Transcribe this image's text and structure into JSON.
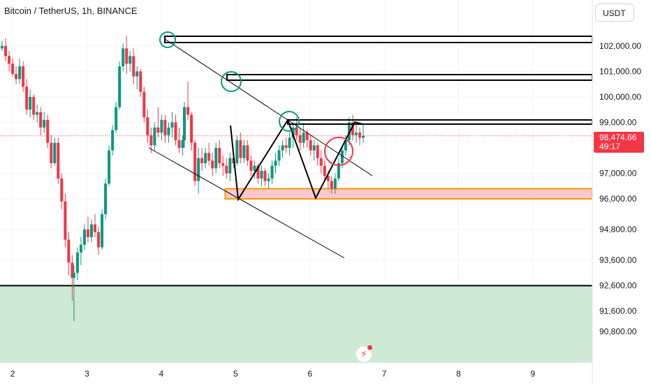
{
  "header": {
    "title": "Bitcoin / TetherUS, 1h, BINANCE"
  },
  "currency_button": {
    "label": "USDT"
  },
  "price_badge": {
    "price": "98,474.66",
    "countdown": "49:17"
  },
  "colors": {
    "up": "#089981",
    "down": "#f23645",
    "grid": "#f0f3fa",
    "zone_fill": "#f8c8cc",
    "zone_border": "#ff9800",
    "support_fill": "#cfead4",
    "circle_green": "#089981",
    "circle_red": "#f23645"
  },
  "icons": {
    "flash": "lightning-icon"
  },
  "chart_data": {
    "type": "candlestick",
    "title": "Bitcoin / TetherUS, 1h, BINANCE",
    "x_tick_labels": [
      "2",
      "3",
      "4",
      "5",
      "6",
      "7",
      "8",
      "9"
    ],
    "x_ticks": [
      2,
      3,
      4,
      5,
      6,
      7,
      8,
      9
    ],
    "xlim": [
      1.83,
      9.8
    ],
    "y_tick_labels": [
      "102,000.00",
      "101,000.00",
      "100,000.00",
      "99,000.00",
      "97,000.00",
      "96,000.00",
      "94,800.00",
      "93,600.00",
      "92,600.00",
      "91,600.00",
      "90,800.00"
    ],
    "y_ticks": [
      102000,
      101000,
      100000,
      99000,
      97000,
      96000,
      94800,
      93600,
      92600,
      91600,
      90800
    ],
    "ylim": [
      89580,
      103800
    ],
    "last_price": 98474.66,
    "grid": true,
    "candles": [
      [
        1.84,
        101900,
        102200,
        101800,
        102000
      ],
      [
        1.92,
        102000,
        102300,
        101400,
        101600
      ],
      [
        2.0,
        101600,
        101800,
        101000,
        101300
      ],
      [
        2.08,
        101300,
        101500,
        100800,
        100900
      ],
      [
        2.16,
        100900,
        101200,
        100500,
        100700
      ],
      [
        2.24,
        100700,
        101500,
        100500,
        101200
      ],
      [
        2.32,
        101200,
        101400,
        100200,
        100400
      ],
      [
        2.4,
        100400,
        100700,
        99300,
        99500
      ],
      [
        2.48,
        99500,
        100300,
        99200,
        100000
      ],
      [
        2.56,
        100000,
        100100,
        99100,
        99300
      ],
      [
        2.64,
        99300,
        99700,
        99000,
        99400
      ],
      [
        2.72,
        99400,
        99600,
        98500,
        98800
      ],
      [
        2.8,
        98800,
        99400,
        98600,
        99100
      ],
      [
        2.88,
        99100,
        99300,
        98000,
        98200
      ],
      [
        2.96,
        98200,
        98500,
        97200,
        97400
      ],
      [
        3.04,
        97400,
        98400,
        97300,
        98200
      ],
      [
        3.12,
        98200,
        98400,
        96600,
        96800
      ],
      [
        3.2,
        96800,
        97000,
        95600,
        95900
      ],
      [
        3.28,
        95900,
        96200,
        94100,
        94400
      ],
      [
        3.36,
        94400,
        94700,
        93000,
        93500
      ],
      [
        3.44,
        93500,
        93800,
        92000,
        92900
      ],
      [
        3.48,
        92900,
        93400,
        91200,
        93100
      ],
      [
        3.56,
        93100,
        94100,
        92800,
        93900
      ],
      [
        3.64,
        93900,
        94500,
        93400,
        94200
      ],
      [
        3.72,
        94200,
        95000,
        94000,
        94800
      ],
      [
        3.8,
        94800,
        95300,
        94300,
        94500
      ],
      [
        3.88,
        94500,
        95200,
        94300,
        95000
      ],
      [
        3.96,
        95000,
        95400,
        94500,
        94700
      ],
      [
        4.04,
        94700,
        94900,
        93800,
        94100
      ],
      [
        4.12,
        94100,
        95600,
        94000,
        95400
      ],
      [
        4.2,
        95400,
        96800,
        95200,
        96600
      ],
      [
        4.28,
        96600,
        98100,
        96500,
        97900
      ],
      [
        4.36,
        97900,
        98900,
        97700,
        98700
      ],
      [
        4.44,
        98700,
        99800,
        98600,
        99600
      ],
      [
        4.52,
        99600,
        101400,
        99500,
        101200
      ],
      [
        4.6,
        101200,
        102100,
        101000,
        101900
      ],
      [
        4.68,
        101900,
        102400,
        100900,
        101300
      ],
      [
        4.76,
        101300,
        101800,
        101000,
        101600
      ],
      [
        4.84,
        101600,
        101900,
        100500,
        100800
      ],
      [
        4.92,
        100800,
        101200,
        100300,
        101000
      ],
      [
        5.0,
        101000,
        101100,
        100000,
        100200
      ],
      [
        5.08,
        100200,
        100400,
        99000,
        99200
      ],
      [
        5.16,
        99200,
        99500,
        98200,
        98500
      ],
      [
        5.24,
        98500,
        98800,
        97800,
        98100
      ],
      [
        5.32,
        98100,
        99000,
        97900,
        98800
      ],
      [
        5.4,
        98800,
        99600,
        98400,
        98600
      ],
      [
        5.48,
        98600,
        99300,
        98300,
        99100
      ],
      [
        5.56,
        99100,
        99300,
        98200,
        98500
      ],
      [
        5.64,
        98500,
        99000,
        98200,
        98800
      ],
      [
        5.72,
        98800,
        99400,
        98400,
        99000
      ],
      [
        5.8,
        99000,
        99300,
        98100,
        98300
      ],
      [
        5.88,
        98300,
        98800,
        97800,
        98000
      ],
      [
        5.96,
        98000,
        98500,
        97700,
        98300
      ],
      [
        6.0,
        98300,
        99800,
        98000,
        99600
      ],
      [
        6.08,
        99600,
        100600,
        99100,
        99300
      ],
      [
        6.16,
        99300,
        99400,
        97900,
        98200
      ],
      [
        6.24,
        98200,
        98300,
        96500,
        96700
      ],
      [
        6.32,
        96700,
        98000,
        96200,
        97600
      ],
      [
        6.4,
        97600,
        98000,
        97100,
        97400
      ],
      [
        6.48,
        97400,
        98000,
        97200,
        97800
      ],
      [
        6.56,
        97800,
        98200,
        97300,
        97500
      ],
      [
        6.64,
        97500,
        97800,
        96900,
        97200
      ],
      [
        6.72,
        97200,
        98200,
        97000,
        98000
      ],
      [
        6.8,
        98000,
        98300,
        97200,
        97400
      ],
      [
        6.88,
        97400,
        97700,
        96900,
        97300
      ],
      [
        6.96,
        97300,
        97600,
        96800,
        97000
      ],
      [
        7.04,
        97000,
        97800,
        96700,
        97600
      ],
      [
        7.12,
        97600,
        97900,
        97200,
        97400
      ],
      [
        7.2,
        97400,
        98500,
        97300,
        98300
      ],
      [
        7.28,
        98300,
        98600,
        97400,
        97600
      ],
      [
        7.36,
        97600,
        98300,
        97400,
        98100
      ],
      [
        7.44,
        98100,
        98300,
        97300,
        97500
      ],
      [
        7.52,
        97500,
        97700,
        96900,
        97100
      ],
      [
        7.6,
        97100,
        97500,
        96800,
        97300
      ],
      [
        7.68,
        97300,
        97400,
        96600,
        96800
      ],
      [
        7.76,
        96800,
        97300,
        96500,
        97100
      ],
      [
        7.84,
        97100,
        97200,
        96500,
        96700
      ],
      [
        7.92,
        96700,
        97000,
        96400,
        96800
      ],
      [
        8.0,
        96800,
        97500,
        96600,
        97300
      ],
      [
        8.08,
        97300,
        97800,
        97000,
        97500
      ],
      [
        8.16,
        97500,
        98100,
        97300,
        97900
      ],
      [
        8.24,
        97900,
        98300,
        97600,
        98100
      ],
      [
        8.32,
        98100,
        98400,
        97800,
        98000
      ],
      [
        8.4,
        98000,
        98600,
        97700,
        98400
      ],
      [
        8.48,
        98400,
        99000,
        98000,
        98800
      ],
      [
        8.56,
        98800,
        99200,
        98300,
        98500
      ],
      [
        8.64,
        98500,
        98800,
        97900,
        98200
      ],
      [
        8.72,
        98200,
        98900,
        98000,
        98600
      ],
      [
        8.8,
        98600,
        98700,
        98000,
        98300
      ],
      [
        8.88,
        98300,
        98500,
        97700,
        97900
      ],
      [
        8.96,
        97900,
        98300,
        97500,
        98100
      ],
      [
        9.04,
        98100,
        98200,
        97300,
        97600
      ],
      [
        9.12,
        97600,
        97900,
        97000,
        97300
      ],
      [
        9.2,
        97300,
        97500,
        96700,
        96900
      ],
      [
        9.28,
        96900,
        97100,
        96400,
        96700
      ],
      [
        9.36,
        96700,
        96900,
        96200,
        96400
      ],
      [
        9.44,
        96400,
        97000,
        96200,
        96800
      ],
      [
        9.52,
        96800,
        97600,
        96700,
        97400
      ],
      [
        9.6,
        97400,
        98100,
        97200,
        97900
      ],
      [
        9.68,
        97900,
        98500,
        97700,
        98300
      ],
      [
        9.76,
        98300,
        99200,
        98100,
        99000
      ],
      [
        9.84,
        99000,
        99300,
        98300,
        98500
      ],
      [
        9.92,
        98500,
        98900,
        98200,
        98600
      ],
      [
        10.0,
        98600,
        98800,
        98100,
        98400
      ],
      [
        10.08,
        98400,
        98900,
        98200,
        98475
      ]
    ]
  }
}
